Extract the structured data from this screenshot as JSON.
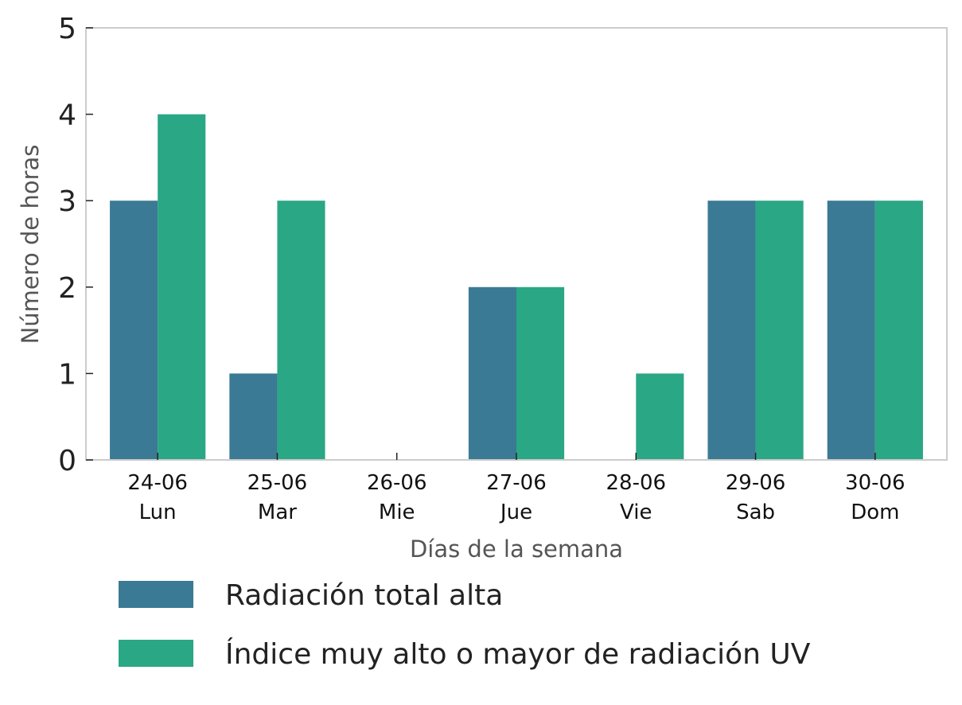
{
  "chart_data": {
    "type": "bar",
    "title": "",
    "xlabel": "Días de la semana",
    "ylabel": "Número de horas",
    "ylim": [
      0,
      5
    ],
    "yticks": [
      "0",
      "1",
      "2",
      "3",
      "4",
      "5"
    ],
    "categories": [
      {
        "date": "24-06",
        "day": "Lun"
      },
      {
        "date": "25-06",
        "day": "Mar"
      },
      {
        "date": "26-06",
        "day": "Mie"
      },
      {
        "date": "27-06",
        "day": "Jue"
      },
      {
        "date": "28-06",
        "day": "Vie"
      },
      {
        "date": "29-06",
        "day": "Sab"
      },
      {
        "date": "30-06",
        "day": "Dom"
      }
    ],
    "series": [
      {
        "name": "Radiación total alta",
        "color": "#3a7a94",
        "values": [
          3,
          1,
          0,
          2,
          0,
          3,
          3
        ]
      },
      {
        "name": "Índice muy alto o mayor de radiación UV",
        "color": "#2aa785",
        "values": [
          4,
          3,
          0,
          2,
          1,
          3,
          3
        ]
      }
    ],
    "grid": false,
    "legend_position": "bottom"
  }
}
